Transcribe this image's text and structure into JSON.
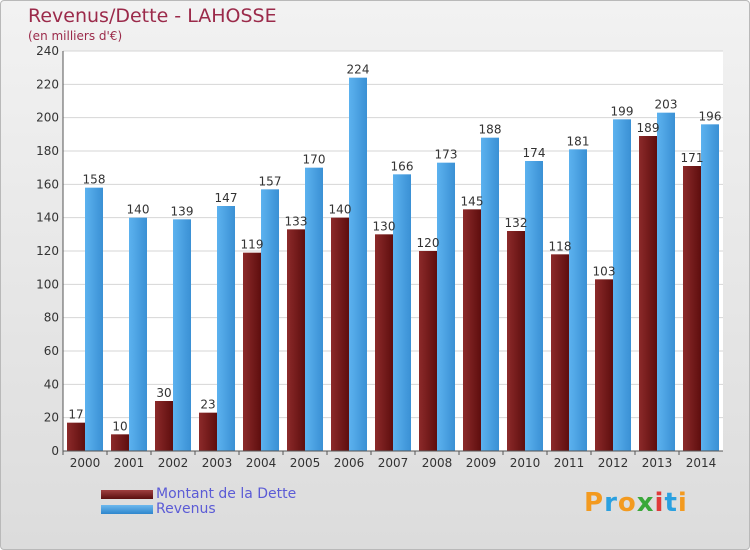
{
  "title": "Revenus/Dette - LAHOSSE",
  "subtitle": "(en milliers d'€)",
  "legend": {
    "debt": "Montant de la Dette",
    "revenue": "Revenus"
  },
  "logo": [
    "P",
    "r",
    "o",
    "x",
    "i",
    "t",
    "i"
  ],
  "colors": {
    "debt": "#7a1f1f",
    "revenue": "#4aa0e0",
    "title": "#9b2a4a",
    "legend_text": "#5b5bd6"
  },
  "chart_data": {
    "type": "bar",
    "categories": [
      "2000",
      "2001",
      "2002",
      "2003",
      "2004",
      "2005",
      "2006",
      "2007",
      "2008",
      "2009",
      "2010",
      "2011",
      "2012",
      "2013",
      "2014"
    ],
    "series": [
      {
        "name": "Montant de la Dette",
        "values": [
          17,
          10,
          30,
          23,
          119,
          133,
          140,
          130,
          120,
          145,
          132,
          118,
          103,
          189,
          171
        ]
      },
      {
        "name": "Revenus",
        "values": [
          158,
          140,
          139,
          147,
          157,
          170,
          224,
          166,
          173,
          188,
          174,
          181,
          199,
          203,
          196
        ]
      }
    ],
    "ylim": [
      0,
      240
    ],
    "yticks": [
      0,
      20,
      40,
      60,
      80,
      100,
      120,
      140,
      160,
      180,
      200,
      220,
      240
    ],
    "grid": true
  }
}
